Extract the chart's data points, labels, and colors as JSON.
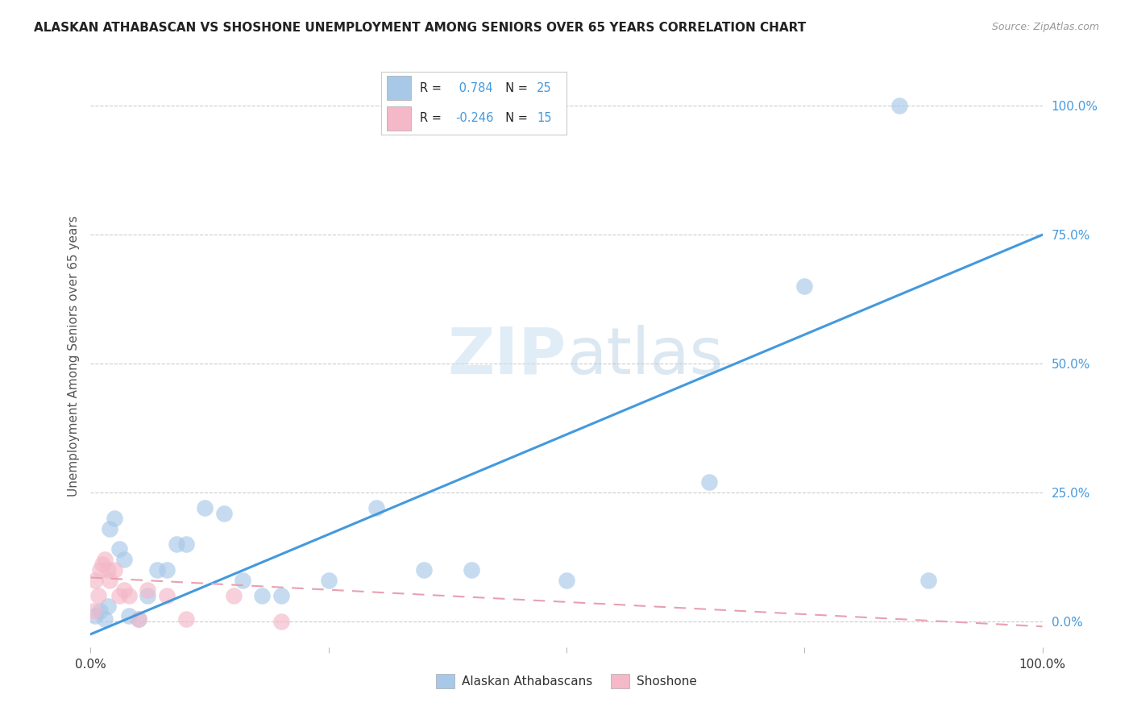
{
  "title": "ALASKAN ATHABASCAN VS SHOSHONE UNEMPLOYMENT AMONG SENIORS OVER 65 YEARS CORRELATION CHART",
  "source": "Source: ZipAtlas.com",
  "ylabel": "Unemployment Among Seniors over 65 years",
  "background_color": "#ffffff",
  "watermark_zip": "ZIP",
  "watermark_atlas": "atlas",
  "color_blue": "#a8c8e8",
  "color_blue_line": "#4499dd",
  "color_pink": "#f4b8c8",
  "color_pink_line": "#e06080",
  "color_pink_dash": "#e8a0b0",
  "athabascan_x": [
    0.5,
    1.0,
    1.5,
    1.8,
    2.0,
    2.5,
    3.0,
    3.5,
    4.0,
    5.0,
    6.0,
    7.0,
    8.0,
    9.0,
    10.0,
    12.0,
    14.0,
    16.0,
    18.0,
    20.0,
    25.0,
    30.0,
    35.0,
    40.0,
    50.0,
    65.0,
    75.0,
    85.0,
    88.0
  ],
  "athabascan_y": [
    1.0,
    2.0,
    0.5,
    3.0,
    18.0,
    20.0,
    14.0,
    12.0,
    1.0,
    0.5,
    5.0,
    10.0,
    10.0,
    15.0,
    15.0,
    22.0,
    21.0,
    8.0,
    5.0,
    5.0,
    8.0,
    22.0,
    10.0,
    10.0,
    8.0,
    27.0,
    65.0,
    100.0,
    8.0
  ],
  "shoshone_x": [
    0.3,
    0.5,
    0.8,
    1.0,
    1.2,
    1.5,
    1.8,
    2.0,
    2.5,
    3.0,
    3.5,
    4.0,
    5.0,
    6.0,
    8.0,
    10.0,
    15.0,
    20.0
  ],
  "shoshone_y": [
    2.0,
    8.0,
    5.0,
    10.0,
    11.0,
    12.0,
    10.0,
    8.0,
    10.0,
    5.0,
    6.0,
    5.0,
    0.5,
    6.0,
    5.0,
    0.5,
    5.0,
    0.0
  ],
  "ath_line_x0": 0,
  "ath_line_y0": -2.5,
  "ath_line_x1": 100,
  "ath_line_y1": 75.0,
  "sho_line_x0": 0,
  "sho_line_y0": 8.5,
  "sho_line_x1": 100,
  "sho_line_y1": -1.0,
  "ytick_values": [
    0,
    25,
    50,
    75,
    100
  ],
  "xlim": [
    0,
    100
  ],
  "ylim": [
    -5,
    108
  ]
}
